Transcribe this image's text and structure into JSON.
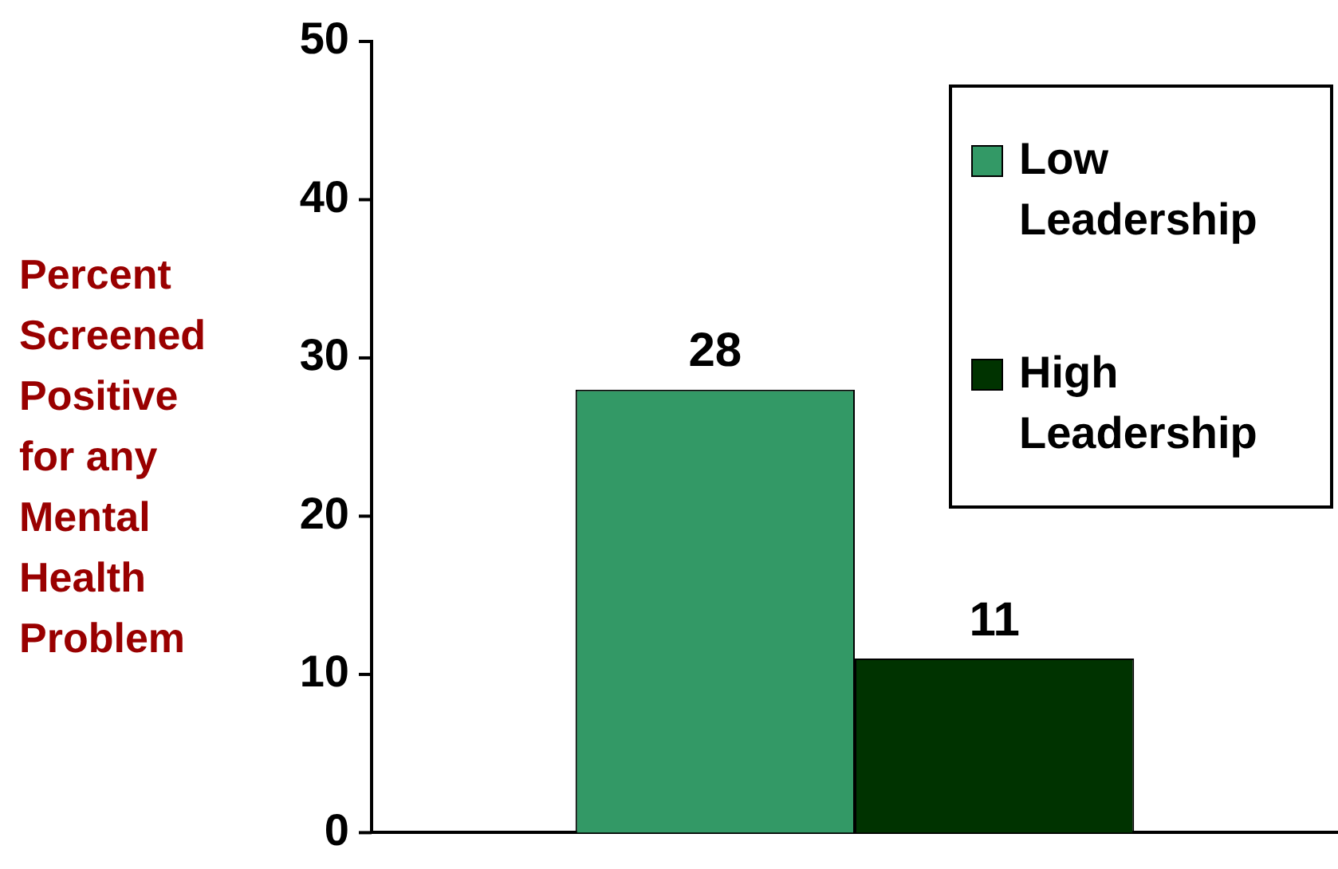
{
  "chart_data": {
    "type": "bar",
    "ylabel": "Percent Screened Positive for any Mental Health Problem",
    "categories": [
      null
    ],
    "series": [
      {
        "name": "Low Leadership",
        "color": "#339966",
        "values": [
          28
        ]
      },
      {
        "name": "High Leadership",
        "color": "#003300",
        "values": [
          11
        ]
      }
    ],
    "ylim": [
      0,
      50
    ],
    "yticks": [
      0,
      10,
      20,
      30,
      40,
      50
    ],
    "grid": false,
    "legend": "top right",
    "data_labels": true
  }
}
